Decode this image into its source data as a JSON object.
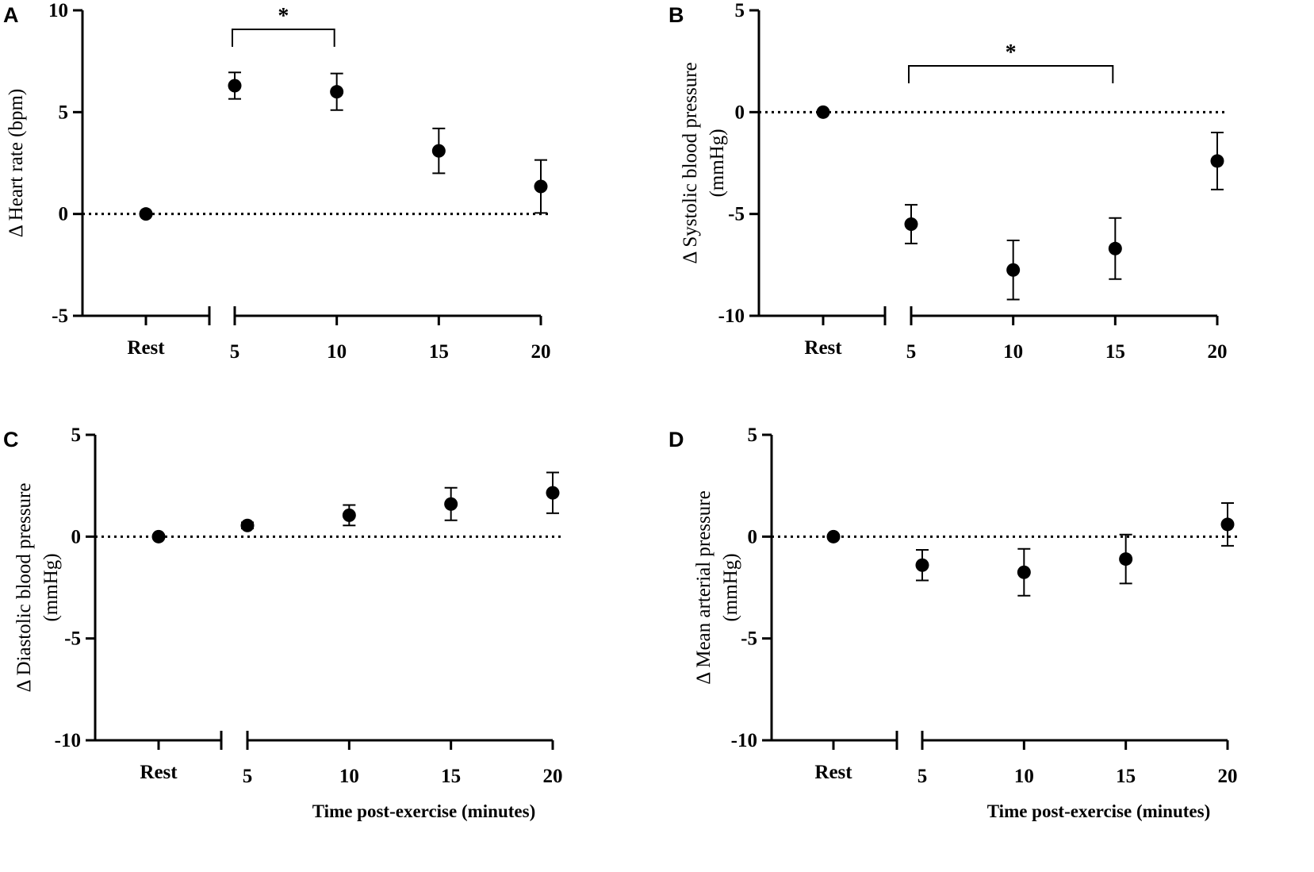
{
  "chart_data": [
    {
      "panel": "A",
      "type": "scatter",
      "ylabel": "Δ Heart rate (bpm)",
      "xlabel": "",
      "ylim": [
        -5,
        10
      ],
      "yticks": [
        "-5",
        "0",
        "5",
        "10"
      ],
      "x_rest_label": "Rest",
      "x_time_ticks": [
        "5",
        "10",
        "15",
        "20"
      ],
      "reference_line": 0,
      "points": [
        {
          "x": "Rest",
          "y": 0,
          "err": 0
        },
        {
          "x": "5",
          "y": 6.3,
          "err": 0.65
        },
        {
          "x": "10",
          "y": 6.0,
          "err": 0.9
        },
        {
          "x": "15",
          "y": 3.1,
          "err": 1.1
        },
        {
          "x": "20",
          "y": 1.35,
          "err": 1.3
        }
      ],
      "significance": [
        {
          "from": "5",
          "to": "10",
          "label": "*"
        }
      ]
    },
    {
      "panel": "B",
      "type": "scatter",
      "ylabel": "Δ Systolic blood pressure",
      "ylabel_unit": "(mmHg)",
      "xlabel": "",
      "ylim": [
        -10,
        5
      ],
      "yticks": [
        "-10",
        "-5",
        "0",
        "5"
      ],
      "x_rest_label": "Rest",
      "x_time_ticks": [
        "5",
        "10",
        "15",
        "20"
      ],
      "reference_line": 0,
      "points": [
        {
          "x": "Rest",
          "y": 0,
          "err": 0
        },
        {
          "x": "5",
          "y": -5.5,
          "err": 0.95
        },
        {
          "x": "10",
          "y": -7.75,
          "err": 1.45
        },
        {
          "x": "15",
          "y": -6.7,
          "err": 1.5
        },
        {
          "x": "20",
          "y": -2.4,
          "err": 1.4
        }
      ],
      "significance": [
        {
          "from": "5",
          "to": "15",
          "label": "*"
        }
      ]
    },
    {
      "panel": "C",
      "type": "scatter",
      "ylabel": "Δ Diastolic blood pressure",
      "ylabel_unit": "(mmHg)",
      "xlabel": "Time post-exercise (minutes)",
      "ylim": [
        -10,
        5
      ],
      "yticks": [
        "-10",
        "-5",
        "0",
        "5"
      ],
      "x_rest_label": "Rest",
      "x_time_ticks": [
        "5",
        "10",
        "15",
        "20"
      ],
      "reference_line": 0,
      "points": [
        {
          "x": "Rest",
          "y": 0,
          "err": 0
        },
        {
          "x": "5",
          "y": 0.55,
          "err": 0.15
        },
        {
          "x": "10",
          "y": 1.05,
          "err": 0.5
        },
        {
          "x": "15",
          "y": 1.6,
          "err": 0.8
        },
        {
          "x": "20",
          "y": 2.15,
          "err": 1.0
        }
      ],
      "significance": []
    },
    {
      "panel": "D",
      "type": "scatter",
      "ylabel": "Δ Mean arterial pressure",
      "ylabel_unit": "(mmHg)",
      "xlabel": "Time post-exercise (minutes)",
      "ylim": [
        -10,
        5
      ],
      "yticks": [
        "-10",
        "-5",
        "0",
        "5"
      ],
      "x_rest_label": "Rest",
      "x_time_ticks": [
        "5",
        "10",
        "15",
        "20"
      ],
      "reference_line": 0,
      "points": [
        {
          "x": "Rest",
          "y": 0,
          "err": 0
        },
        {
          "x": "5",
          "y": -1.4,
          "err": 0.75
        },
        {
          "x": "10",
          "y": -1.75,
          "err": 1.15
        },
        {
          "x": "15",
          "y": -1.1,
          "err": 1.2
        },
        {
          "x": "20",
          "y": 0.6,
          "err": 1.05
        }
      ],
      "significance": []
    }
  ]
}
